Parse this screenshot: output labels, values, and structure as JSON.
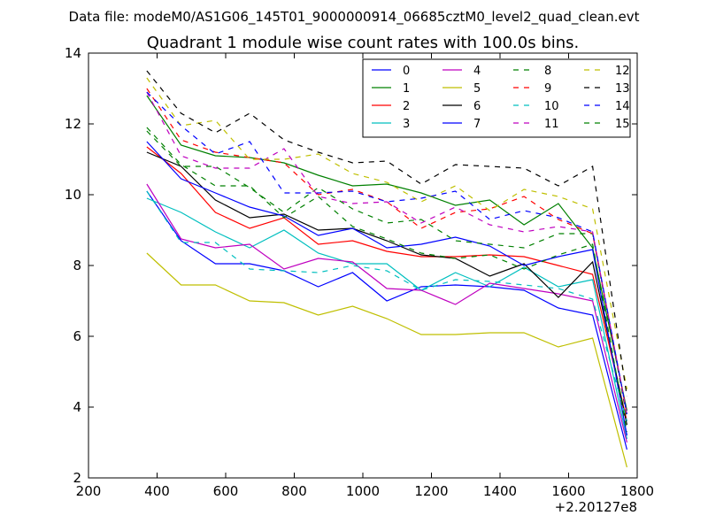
{
  "header": {
    "data_file": "Data file: modeM0/AS1G06_145T01_9000000914_06685cztM0_level2_quad_clean.evt"
  },
  "chart_data": {
    "type": "line",
    "title": "Quadrant 1 module wise count rates with 100.0s bins.",
    "xlabel": "",
    "ylabel": "",
    "x_offset_label": "+2.20127e8",
    "xlim": [
      200,
      1800
    ],
    "ylim": [
      2,
      14
    ],
    "xticks": [
      200,
      400,
      600,
      800,
      1000,
      1200,
      1400,
      1600,
      1800
    ],
    "yticks": [
      2,
      4,
      6,
      8,
      10,
      12,
      14
    ],
    "x": [
      370,
      470,
      570,
      670,
      770,
      870,
      970,
      1070,
      1170,
      1270,
      1370,
      1470,
      1570,
      1670,
      1770
    ],
    "legend_location": "top-right",
    "series": [
      {
        "name": "0",
        "color": "#0000ff",
        "dash": "solid",
        "values": [
          10.1,
          8.7,
          8.05,
          8.05,
          7.85,
          7.4,
          7.8,
          7.0,
          7.4,
          7.45,
          7.4,
          7.3,
          6.8,
          6.6,
          2.8
        ]
      },
      {
        "name": "1",
        "color": "#008000",
        "dash": "solid",
        "values": [
          12.8,
          11.4,
          11.1,
          11.05,
          10.9,
          10.55,
          10.25,
          10.3,
          10.05,
          9.7,
          9.85,
          9.15,
          9.75,
          8.5,
          3.9
        ]
      },
      {
        "name": "2",
        "color": "#ff0000",
        "dash": "solid",
        "values": [
          11.35,
          10.6,
          9.5,
          9.05,
          9.35,
          8.6,
          8.7,
          8.4,
          8.25,
          8.25,
          8.3,
          8.25,
          8.0,
          7.75,
          3.6
        ]
      },
      {
        "name": "3",
        "color": "#00bfbf",
        "dash": "solid",
        "values": [
          9.9,
          9.5,
          8.95,
          8.5,
          9.0,
          8.35,
          8.05,
          8.05,
          7.3,
          7.8,
          7.4,
          7.95,
          7.4,
          7.6,
          3.1
        ]
      },
      {
        "name": "4",
        "color": "#bf00bf",
        "dash": "solid",
        "values": [
          10.3,
          8.75,
          8.5,
          8.6,
          7.9,
          8.2,
          8.1,
          7.35,
          7.3,
          6.9,
          7.5,
          7.35,
          7.2,
          7.0,
          3.0
        ]
      },
      {
        "name": "5",
        "color": "#bfbf00",
        "dash": "solid",
        "values": [
          8.35,
          7.45,
          7.45,
          7.0,
          6.95,
          6.6,
          6.85,
          6.5,
          6.05,
          6.05,
          6.1,
          6.1,
          5.7,
          5.95,
          2.3
        ]
      },
      {
        "name": "6",
        "color": "#000000",
        "dash": "solid",
        "values": [
          11.2,
          10.8,
          9.85,
          9.35,
          9.45,
          9.0,
          9.05,
          8.7,
          8.3,
          8.2,
          7.7,
          8.05,
          7.1,
          8.1,
          3.5
        ]
      },
      {
        "name": "7",
        "color": "#0000ff",
        "dash": "solid",
        "values": [
          11.5,
          10.45,
          10.05,
          9.65,
          9.4,
          8.85,
          9.05,
          8.5,
          8.6,
          8.8,
          8.55,
          8.0,
          8.25,
          8.45,
          3.2
        ]
      },
      {
        "name": "8",
        "color": "#008000",
        "dash": "dashed",
        "values": [
          11.8,
          10.8,
          10.8,
          10.2,
          9.5,
          10.2,
          9.6,
          9.2,
          9.3,
          8.7,
          8.6,
          8.5,
          8.9,
          8.9,
          3.7
        ]
      },
      {
        "name": "9",
        "color": "#ff0000",
        "dash": "dashed",
        "values": [
          13.0,
          11.55,
          11.2,
          11.05,
          10.9,
          10.0,
          10.15,
          9.8,
          9.05,
          9.5,
          9.6,
          9.95,
          9.3,
          8.9,
          3.8
        ]
      },
      {
        "name": "10",
        "color": "#00bfbf",
        "dash": "dashed",
        "values": [
          10.1,
          8.65,
          8.65,
          7.9,
          7.85,
          7.8,
          8.0,
          7.85,
          7.3,
          7.6,
          7.55,
          7.45,
          7.35,
          7.05,
          3.6
        ]
      },
      {
        "name": "11",
        "color": "#bf00bf",
        "dash": "dashed",
        "values": [
          12.9,
          11.1,
          10.75,
          10.75,
          11.3,
          9.95,
          9.75,
          9.8,
          9.2,
          9.65,
          9.15,
          8.95,
          9.1,
          8.95,
          3.8
        ]
      },
      {
        "name": "12",
        "color": "#bfbf00",
        "dash": "dashed",
        "values": [
          13.3,
          11.95,
          12.1,
          11.0,
          11.0,
          11.15,
          10.6,
          10.35,
          9.8,
          10.25,
          9.55,
          10.15,
          9.95,
          9.6,
          4.5
        ]
      },
      {
        "name": "13",
        "color": "#000000",
        "dash": "dashed",
        "values": [
          13.5,
          12.3,
          11.75,
          12.3,
          11.55,
          11.2,
          10.9,
          10.95,
          10.3,
          10.85,
          10.8,
          10.75,
          10.25,
          10.8,
          4.3
        ]
      },
      {
        "name": "14",
        "color": "#0000ff",
        "dash": "dashed",
        "values": [
          12.9,
          11.95,
          11.15,
          11.5,
          10.05,
          10.05,
          10.1,
          9.8,
          9.9,
          10.1,
          9.3,
          9.55,
          9.35,
          8.95,
          3.8
        ]
      },
      {
        "name": "15",
        "color": "#008000",
        "dash": "dashed",
        "values": [
          11.9,
          10.85,
          10.25,
          10.25,
          9.35,
          9.95,
          9.1,
          8.75,
          8.35,
          8.2,
          8.3,
          7.9,
          8.3,
          8.6,
          3.3
        ]
      }
    ]
  }
}
